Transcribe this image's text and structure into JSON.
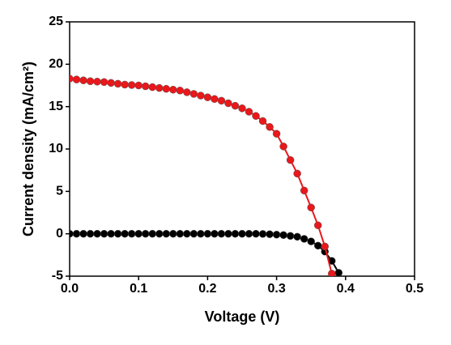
{
  "chart_data": {
    "type": "line",
    "x_label": "Voltage (V)",
    "y_label": "Current density (mA/cm²)",
    "x": [
      0,
      0.01,
      0.02,
      0.03,
      0.04,
      0.05,
      0.06,
      0.07,
      0.08,
      0.09,
      0.1,
      0.11,
      0.12,
      0.13,
      0.14,
      0.15,
      0.16,
      0.17,
      0.18,
      0.19,
      0.2,
      0.21,
      0.22,
      0.23,
      0.24,
      0.25,
      0.26,
      0.27,
      0.28,
      0.29,
      0.3,
      0.31,
      0.32,
      0.33,
      0.34,
      0.35,
      0.36,
      0.37,
      0.38,
      0.39
    ],
    "series": [
      {
        "color": "#000000",
        "values": [
          0,
          0,
          0,
          0,
          0,
          0,
          0,
          0,
          0,
          0,
          0,
          0,
          0,
          0,
          0,
          0,
          0,
          0,
          0,
          0,
          0,
          0,
          0,
          0,
          0,
          0,
          0,
          0,
          -0.02,
          -0.05,
          -0.1,
          -0.15,
          -0.25,
          -0.35,
          -0.6,
          -0.9,
          -1.4,
          -2.1,
          -3.2,
          -4.6
        ]
      },
      {
        "color": "#e8181b",
        "values": [
          18.3,
          18.2,
          18.1,
          18.0,
          17.95,
          17.9,
          17.8,
          17.7,
          17.6,
          17.55,
          17.5,
          17.4,
          17.3,
          17.2,
          17.1,
          17.0,
          16.9,
          16.7,
          16.5,
          16.3,
          16.1,
          15.9,
          15.7,
          15.4,
          15.1,
          14.8,
          14.4,
          13.9,
          13.3,
          12.6,
          11.8,
          10.3,
          8.7,
          7.1,
          5.1,
          3.1,
          1.0,
          -1.5,
          -4.7,
          null
        ]
      }
    ],
    "xlim": [
      0,
      0.5
    ],
    "xticks": [
      {
        "value": 0,
        "label": "0.0"
      },
      0.1,
      0.2,
      0.3,
      0.4,
      0.5
    ],
    "ylim": [
      -5,
      25
    ],
    "yticks": [
      -5,
      0,
      5,
      10,
      15,
      20,
      25
    ]
  }
}
